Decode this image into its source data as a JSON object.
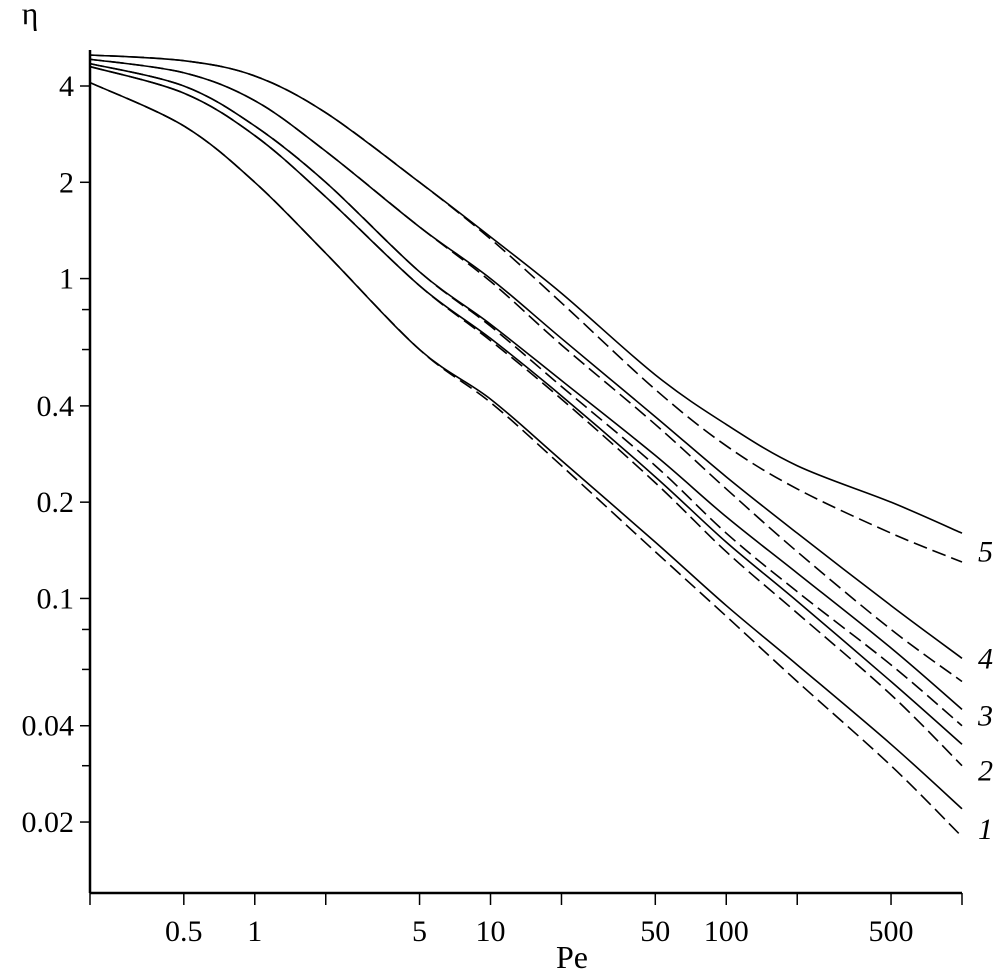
{
  "chart_data": {
    "type": "line",
    "title": "",
    "xlabel": "Pe",
    "ylabel": "η",
    "xscale": "log",
    "yscale": "log",
    "xlim": [
      0.2,
      1000
    ],
    "ylim": [
      0.012,
      5.0
    ],
    "grid": false,
    "x_ticks": [
      {
        "value": 0.5,
        "label": "0.5"
      },
      {
        "value": 1,
        "label": "1"
      },
      {
        "value": 5,
        "label": "5"
      },
      {
        "value": 10,
        "label": "10"
      },
      {
        "value": 50,
        "label": "50"
      },
      {
        "value": 100,
        "label": "100"
      },
      {
        "value": 500,
        "label": "500"
      }
    ],
    "x_minor_ticks": [
      0.2,
      2,
      20,
      200,
      1000
    ],
    "y_ticks": [
      {
        "value": 0.02,
        "label": "0.02"
      },
      {
        "value": 0.04,
        "label": "0.04"
      },
      {
        "value": 0.1,
        "label": "0.1"
      },
      {
        "value": 0.2,
        "label": "0.2"
      },
      {
        "value": 0.4,
        "label": "0.4"
      },
      {
        "value": 1,
        "label": "1"
      },
      {
        "value": 2,
        "label": "2"
      },
      {
        "value": 4,
        "label": "4"
      }
    ],
    "y_minor_ticks": [
      0.03,
      0.06,
      0.08,
      0.6,
      0.8
    ],
    "series": [
      {
        "curve_label": "1",
        "style": "solid",
        "x": [
          0.2,
          0.5,
          1,
          2,
          5,
          10,
          20,
          50,
          100,
          200,
          500,
          1000
        ],
        "y": [
          4.1,
          3.0,
          2.0,
          1.2,
          0.6,
          0.42,
          0.27,
          0.15,
          0.095,
          0.062,
          0.035,
          0.022
        ]
      },
      {
        "curve_label": "1",
        "style": "dashed",
        "x": [
          0.2,
          0.5,
          1,
          2,
          5,
          10,
          20,
          50,
          100,
          200,
          500,
          1000
        ],
        "y": [
          4.1,
          3.0,
          2.0,
          1.2,
          0.6,
          0.41,
          0.26,
          0.14,
          0.088,
          0.055,
          0.03,
          0.018
        ]
      },
      {
        "curve_label": "2",
        "style": "solid",
        "x": [
          0.2,
          0.5,
          1,
          2,
          5,
          10,
          20,
          50,
          100,
          200,
          500,
          1000
        ],
        "y": [
          4.6,
          3.8,
          2.8,
          1.8,
          0.95,
          0.65,
          0.43,
          0.24,
          0.15,
          0.098,
          0.055,
          0.035
        ]
      },
      {
        "curve_label": "2",
        "style": "dashed",
        "x": [
          0.2,
          0.5,
          1,
          2,
          5,
          10,
          20,
          50,
          100,
          200,
          500,
          1000
        ],
        "y": [
          4.6,
          3.8,
          2.8,
          1.8,
          0.95,
          0.64,
          0.42,
          0.23,
          0.14,
          0.09,
          0.05,
          0.03
        ]
      },
      {
        "curve_label": "3",
        "style": "solid",
        "x": [
          0.2,
          0.5,
          1,
          2,
          5,
          10,
          20,
          50,
          100,
          200,
          500,
          1000
        ],
        "y": [
          4.7,
          4.0,
          3.0,
          2.0,
          1.05,
          0.72,
          0.48,
          0.28,
          0.18,
          0.12,
          0.07,
          0.045
        ]
      },
      {
        "curve_label": "3",
        "style": "dashed",
        "x": [
          0.2,
          0.5,
          1,
          2,
          5,
          10,
          20,
          50,
          100,
          200,
          500,
          1000
        ],
        "y": [
          4.7,
          4.0,
          3.0,
          2.0,
          1.05,
          0.71,
          0.46,
          0.26,
          0.16,
          0.105,
          0.062,
          0.04
        ]
      },
      {
        "curve_label": "4",
        "style": "solid",
        "x": [
          0.2,
          0.5,
          1,
          2,
          5,
          10,
          20,
          50,
          100,
          200,
          500,
          1000
        ],
        "y": [
          4.85,
          4.4,
          3.6,
          2.5,
          1.45,
          1.0,
          0.65,
          0.37,
          0.24,
          0.16,
          0.095,
          0.065
        ]
      },
      {
        "curve_label": "4",
        "style": "dashed",
        "x": [
          0.2,
          0.5,
          1,
          2,
          5,
          10,
          20,
          50,
          100,
          200,
          500,
          1000
        ],
        "y": [
          4.85,
          4.4,
          3.6,
          2.5,
          1.45,
          0.98,
          0.62,
          0.35,
          0.22,
          0.14,
          0.08,
          0.055
        ]
      },
      {
        "curve_label": "5",
        "style": "solid",
        "x": [
          0.2,
          0.5,
          1,
          2,
          5,
          10,
          20,
          50,
          100,
          200,
          500,
          1000
        ],
        "y": [
          5.0,
          4.8,
          4.3,
          3.3,
          2.0,
          1.35,
          0.9,
          0.5,
          0.35,
          0.26,
          0.2,
          0.16
        ]
      },
      {
        "curve_label": "5",
        "style": "dashed",
        "x": [
          0.2,
          0.5,
          1,
          2,
          5,
          10,
          20,
          50,
          100,
          200,
          500,
          1000
        ],
        "y": [
          5.0,
          4.8,
          4.3,
          3.3,
          2.0,
          1.33,
          0.84,
          0.45,
          0.3,
          0.22,
          0.16,
          0.13
        ]
      }
    ],
    "curve_labels": [
      {
        "text": "1",
        "y": 0.019
      },
      {
        "text": "2",
        "y": 0.029
      },
      {
        "text": "3",
        "y": 0.043
      },
      {
        "text": "4",
        "y": 0.065
      },
      {
        "text": "5",
        "y": 0.14
      }
    ]
  }
}
